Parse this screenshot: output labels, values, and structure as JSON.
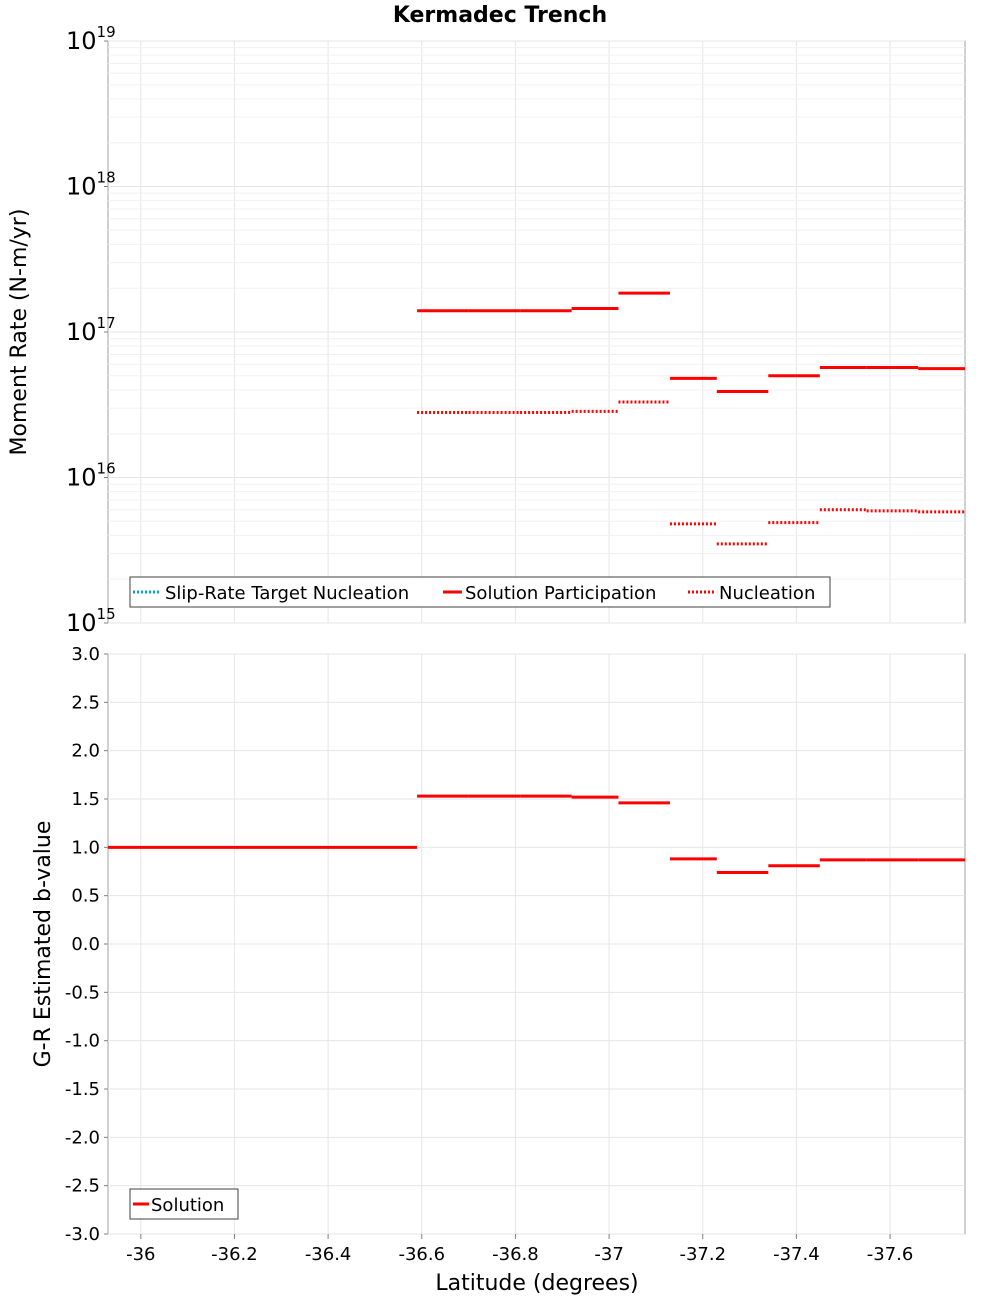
{
  "chart_data": [
    {
      "type": "line",
      "title": "Kermadec Trench",
      "xlabel": "Latitude (degrees)",
      "ylabel": "Moment Rate (N-m/yr)",
      "yscale": "log",
      "ylim_exp": [
        15,
        19
      ],
      "xlim": [
        -35.93,
        -37.76
      ],
      "y_tick_base": "10",
      "y_tick_exponents": [
        "15",
        "16",
        "17",
        "18",
        "19"
      ],
      "legend": {
        "location": "bottom-left",
        "entries": [
          {
            "label": "Slip-Rate Target Nucleation",
            "color": "#00aacc",
            "style": "dotted"
          },
          {
            "label": "Solution Participation",
            "color": "#ff0000",
            "style": "solid"
          },
          {
            "label": "Nucleation",
            "color": "#ff0000",
            "style": "dotted"
          }
        ]
      },
      "series": [
        {
          "name": "Solution Participation",
          "color": "#ff0000",
          "style": "solid",
          "segments": [
            {
              "x0": -36.59,
              "x1": -36.7,
              "y": 1.4e+17
            },
            {
              "x0": -36.7,
              "x1": -36.81,
              "y": 1.4e+17
            },
            {
              "x0": -36.81,
              "x1": -36.92,
              "y": 1.4e+17
            },
            {
              "x0": -36.92,
              "x1": -37.02,
              "y": 1.45e+17
            },
            {
              "x0": -37.02,
              "x1": -37.13,
              "y": 1.85e+17
            },
            {
              "x0": -37.13,
              "x1": -37.23,
              "y": 4.8e+16
            },
            {
              "x0": -37.23,
              "x1": -37.34,
              "y": 3.9e+16
            },
            {
              "x0": -37.34,
              "x1": -37.45,
              "y": 5e+16
            },
            {
              "x0": -37.45,
              "x1": -37.55,
              "y": 5.7e+16
            },
            {
              "x0": -37.55,
              "x1": -37.66,
              "y": 5.7e+16
            },
            {
              "x0": -37.66,
              "x1": -37.76,
              "y": 5.6e+16
            }
          ]
        },
        {
          "name": "Nucleation",
          "color": "#ff0000",
          "style": "dotted",
          "segments": [
            {
              "x0": -36.59,
              "x1": -36.7,
              "y": 2.8e+16
            },
            {
              "x0": -36.7,
              "x1": -36.81,
              "y": 2.8e+16
            },
            {
              "x0": -36.81,
              "x1": -36.92,
              "y": 2.8e+16
            },
            {
              "x0": -36.92,
              "x1": -37.02,
              "y": 2.85e+16
            },
            {
              "x0": -37.02,
              "x1": -37.13,
              "y": 3.3e+16
            },
            {
              "x0": -37.13,
              "x1": -37.23,
              "y": 4800000000000000.0
            },
            {
              "x0": -37.23,
              "x1": -37.34,
              "y": 3500000000000000.0
            },
            {
              "x0": -37.34,
              "x1": -37.45,
              "y": 4900000000000000.0
            },
            {
              "x0": -37.45,
              "x1": -37.55,
              "y": 6000000000000000.0
            },
            {
              "x0": -37.55,
              "x1": -37.66,
              "y": 5900000000000000.0
            },
            {
              "x0": -37.66,
              "x1": -37.76,
              "y": 5800000000000000.0
            }
          ]
        }
      ]
    },
    {
      "type": "line",
      "xlabel": "Latitude (degrees)",
      "ylabel": "G-R Estimated b-value",
      "ylim": [
        -3.0,
        3.0
      ],
      "xlim": [
        -35.93,
        -37.76
      ],
      "y_ticks": [
        "3.0",
        "2.5",
        "2.0",
        "1.5",
        "1.0",
        "0.5",
        "0.0",
        "-0.5",
        "-1.0",
        "-1.5",
        "-2.0",
        "-2.5",
        "-3.0"
      ],
      "x_ticks": [
        "-36",
        "-36.2",
        "-36.4",
        "-36.6",
        "-36.8",
        "-37",
        "-37.2",
        "-37.4",
        "-37.6"
      ],
      "legend": {
        "location": "bottom-left",
        "entries": [
          {
            "label": "Solution",
            "color": "#ff0000",
            "style": "solid"
          }
        ]
      },
      "series": [
        {
          "name": "Solution",
          "color": "#ff0000",
          "style": "solid",
          "segments": [
            {
              "x0": -35.93,
              "x1": -36.59,
              "y": 1.0
            },
            {
              "x0": -36.59,
              "x1": -36.7,
              "y": 1.53
            },
            {
              "x0": -36.7,
              "x1": -36.81,
              "y": 1.53
            },
            {
              "x0": -36.81,
              "x1": -36.92,
              "y": 1.53
            },
            {
              "x0": -36.92,
              "x1": -37.02,
              "y": 1.52
            },
            {
              "x0": -37.02,
              "x1": -37.13,
              "y": 1.46
            },
            {
              "x0": -37.13,
              "x1": -37.23,
              "y": 0.88
            },
            {
              "x0": -37.23,
              "x1": -37.34,
              "y": 0.74
            },
            {
              "x0": -37.34,
              "x1": -37.45,
              "y": 0.81
            },
            {
              "x0": -37.45,
              "x1": -37.55,
              "y": 0.87
            },
            {
              "x0": -37.55,
              "x1": -37.66,
              "y": 0.87
            },
            {
              "x0": -37.66,
              "x1": -37.76,
              "y": 0.87
            }
          ]
        }
      ]
    }
  ]
}
